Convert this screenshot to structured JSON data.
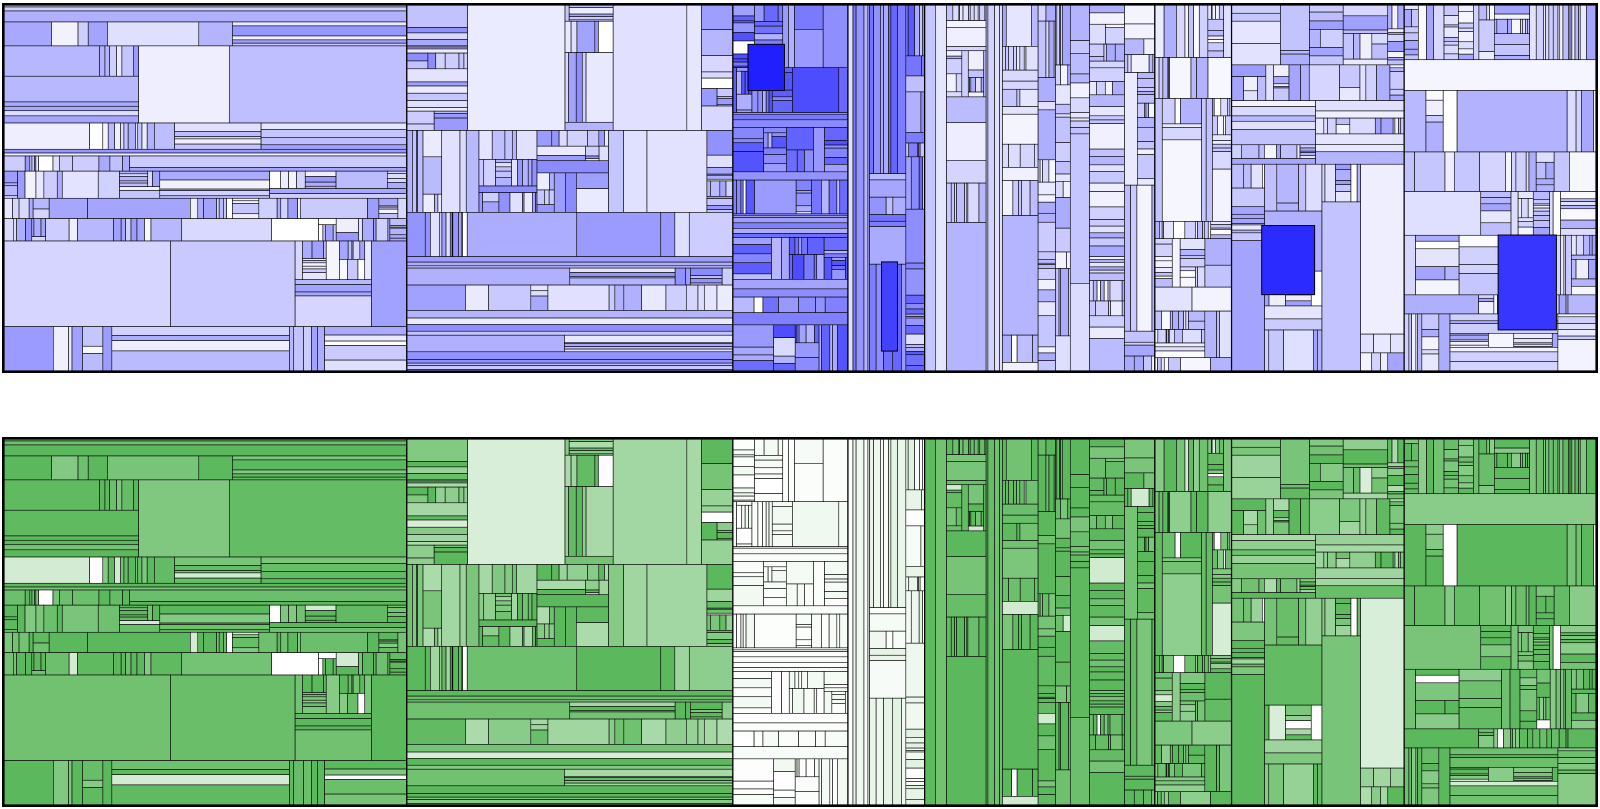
{
  "chart_data": [
    {
      "type": "treemap",
      "title": "",
      "color_scale": {
        "low": "#ffffff",
        "high": "#2020ff"
      },
      "regions": [
        {
          "label": "",
          "weight": 42,
          "intensity": 0.25,
          "spread": 0.22
        },
        {
          "label": "",
          "weight": 34,
          "intensity": 0.3,
          "spread": 0.22
        },
        {
          "label": "",
          "weight": 12,
          "intensity": 0.55,
          "spread": 0.25
        },
        {
          "label": "",
          "weight": 8,
          "intensity": 0.5,
          "spread": 0.25
        },
        {
          "label": "",
          "weight": 24,
          "intensity": 0.22,
          "spread": 0.18
        },
        {
          "label": "",
          "weight": 8,
          "intensity": 0.18,
          "spread": 0.18
        },
        {
          "label": "",
          "weight": 18,
          "intensity": 0.25,
          "spread": 0.2
        },
        {
          "label": "",
          "weight": 20,
          "intensity": 0.22,
          "spread": 0.2
        }
      ],
      "highlights": [
        {
          "region": 2,
          "intensity": 1.0
        },
        {
          "region": 6,
          "intensity": 0.95
        },
        {
          "region": 7,
          "intensity": 0.9
        },
        {
          "region": 3,
          "intensity": 0.85
        }
      ]
    },
    {
      "type": "treemap",
      "title": "",
      "color_scale": {
        "low": "#ffffff",
        "high": "#5cb85c"
      },
      "regions": [
        {
          "label": "",
          "weight": 42,
          "intensity": 0.92,
          "spread": 0.18
        },
        {
          "label": "",
          "weight": 34,
          "intensity": 0.8,
          "spread": 0.3
        },
        {
          "label": "",
          "weight": 12,
          "intensity": 0.04,
          "spread": 0.05
        },
        {
          "label": "",
          "weight": 8,
          "intensity": 0.1,
          "spread": 0.1
        },
        {
          "label": "",
          "weight": 24,
          "intensity": 0.95,
          "spread": 0.15
        },
        {
          "label": "",
          "weight": 8,
          "intensity": 0.85,
          "spread": 0.2
        },
        {
          "label": "",
          "weight": 18,
          "intensity": 0.8,
          "spread": 0.3
        },
        {
          "label": "",
          "weight": 20,
          "intensity": 0.9,
          "spread": 0.2
        }
      ],
      "highlights": []
    }
  ]
}
